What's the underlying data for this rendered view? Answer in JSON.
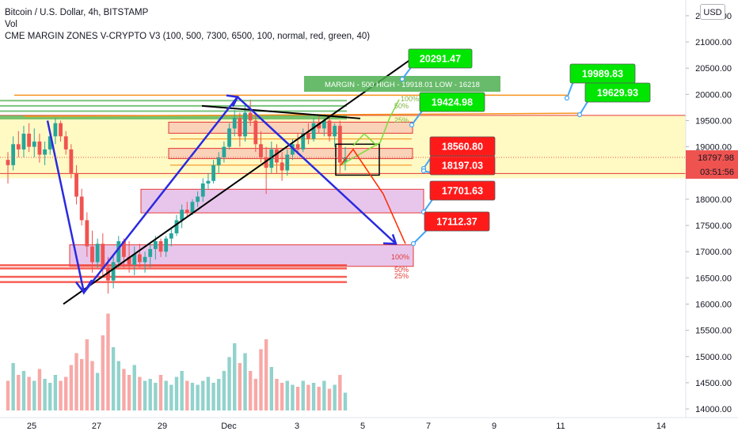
{
  "header": {
    "symbol_line": "Bitcoin / U.S. Dollar, 4h, BITSTAMP",
    "volume_label": "Vol",
    "indicator_line": "CME MARGIN ZONES V-CRYPTO V3 (100, 500, 7300, 6500, 100, normal, red, green, 40)",
    "currency_button": "USD"
  },
  "colors": {
    "up": "#26a69a",
    "down": "#ef5350",
    "blue_drawing": "#2a2ae0",
    "trend_line": "#000000",
    "orange_line": "#f7931a",
    "green_label": "#00e600",
    "red_label": "#ff1a1a",
    "zone_fill_yellow": "#fff9c4",
    "zone_fill_purple": "#e8c6ec"
  },
  "margin_zone_label": "MARGIN - 500  HIGH - 19918.01  LOW - 16218",
  "price_labels": {
    "current_price": "18797.98",
    "countdown": "03:51:56"
  },
  "callouts": [
    {
      "text": "20291.47",
      "color": "green"
    },
    {
      "text": "19989.83",
      "color": "green"
    },
    {
      "text": "19629.93",
      "color": "green"
    },
    {
      "text": "19424.98",
      "color": "green"
    },
    {
      "text": "18560.80",
      "color": "red"
    },
    {
      "text": "18197.03",
      "color": "red"
    },
    {
      "text": "17701.63",
      "color": "red"
    },
    {
      "text": "17112.37",
      "color": "red"
    }
  ],
  "zone_percent_labels": [
    "100%",
    "50%",
    "25%",
    "25%",
    "50%",
    "100%"
  ],
  "chart_data": {
    "type": "candlestick",
    "timeframe": "4h",
    "x_ticks": [
      "25",
      "27",
      "29",
      "Dec",
      "3",
      "5",
      "7",
      "9",
      "11",
      "14"
    ],
    "y_ticks": [
      21500,
      21000,
      20500,
      20000,
      19500,
      19000,
      18500,
      18000,
      17500,
      17000,
      16500,
      16000,
      15500,
      15000,
      14500,
      14000
    ],
    "y_tick_labels": [
      "21500.00",
      "21000.00",
      "20500.00",
      "20000.00",
      "19500.00",
      "19000.00",
      "18500.00",
      "18000.00",
      "17500.00",
      "17000.00",
      "16500.00",
      "16000.00",
      "15500.00",
      "15000.00",
      "14500.00",
      "14000.00"
    ],
    "ylim": [
      13850,
      21800
    ],
    "last_price": 18797.98,
    "candles": [
      {
        "o": 18750,
        "h": 18900,
        "l": 18300,
        "c": 18650
      },
      {
        "o": 18650,
        "h": 19200,
        "l": 18550,
        "c": 19050
      },
      {
        "o": 19050,
        "h": 19300,
        "l": 18800,
        "c": 18950
      },
      {
        "o": 18950,
        "h": 19400,
        "l": 18800,
        "c": 19250
      },
      {
        "o": 19250,
        "h": 19450,
        "l": 18900,
        "c": 19000
      },
      {
        "o": 19000,
        "h": 19350,
        "l": 18800,
        "c": 19100
      },
      {
        "o": 19100,
        "h": 19250,
        "l": 18700,
        "c": 18850
      },
      {
        "o": 18850,
        "h": 19100,
        "l": 18650,
        "c": 18950
      },
      {
        "o": 18950,
        "h": 19300,
        "l": 18850,
        "c": 19200
      },
      {
        "o": 19200,
        "h": 19550,
        "l": 19050,
        "c": 19450
      },
      {
        "o": 19450,
        "h": 19500,
        "l": 19100,
        "c": 19200
      },
      {
        "o": 19200,
        "h": 19300,
        "l": 18850,
        "c": 18950
      },
      {
        "o": 18950,
        "h": 19050,
        "l": 18400,
        "c": 18500
      },
      {
        "o": 18500,
        "h": 18650,
        "l": 17900,
        "c": 18050
      },
      {
        "o": 18050,
        "h": 18200,
        "l": 17500,
        "c": 17600
      },
      {
        "o": 17600,
        "h": 17750,
        "l": 16900,
        "c": 17100
      },
      {
        "o": 17100,
        "h": 17400,
        "l": 16600,
        "c": 16800
      },
      {
        "o": 16800,
        "h": 17250,
        "l": 16700,
        "c": 17150
      },
      {
        "o": 17150,
        "h": 17350,
        "l": 16500,
        "c": 16700
      },
      {
        "o": 16700,
        "h": 16900,
        "l": 16200,
        "c": 16450
      },
      {
        "o": 16450,
        "h": 16950,
        "l": 16300,
        "c": 16800
      },
      {
        "o": 16800,
        "h": 17300,
        "l": 16700,
        "c": 17200
      },
      {
        "o": 17200,
        "h": 17250,
        "l": 16700,
        "c": 16900
      },
      {
        "o": 16900,
        "h": 17200,
        "l": 16600,
        "c": 16750
      },
      {
        "o": 16750,
        "h": 17100,
        "l": 16550,
        "c": 16950
      },
      {
        "o": 16950,
        "h": 17150,
        "l": 16700,
        "c": 16800
      },
      {
        "o": 16800,
        "h": 17000,
        "l": 16600,
        "c": 16900
      },
      {
        "o": 16900,
        "h": 17150,
        "l": 16700,
        "c": 17050
      },
      {
        "o": 17050,
        "h": 17300,
        "l": 16850,
        "c": 17200
      },
      {
        "o": 17200,
        "h": 17250,
        "l": 16900,
        "c": 17000
      },
      {
        "o": 17000,
        "h": 17300,
        "l": 16900,
        "c": 17250
      },
      {
        "o": 17250,
        "h": 17450,
        "l": 17100,
        "c": 17350
      },
      {
        "o": 17350,
        "h": 17700,
        "l": 17300,
        "c": 17600
      },
      {
        "o": 17600,
        "h": 17900,
        "l": 17450,
        "c": 17800
      },
      {
        "o": 17800,
        "h": 17950,
        "l": 17650,
        "c": 17750
      },
      {
        "o": 17750,
        "h": 18000,
        "l": 17700,
        "c": 17950
      },
      {
        "o": 17950,
        "h": 18150,
        "l": 17850,
        "c": 18050
      },
      {
        "o": 18050,
        "h": 18400,
        "l": 17950,
        "c": 18300
      },
      {
        "o": 18300,
        "h": 18500,
        "l": 18200,
        "c": 18350
      },
      {
        "o": 18350,
        "h": 18750,
        "l": 18300,
        "c": 18650
      },
      {
        "o": 18650,
        "h": 18900,
        "l": 18500,
        "c": 18800
      },
      {
        "o": 18800,
        "h": 19100,
        "l": 18700,
        "c": 19000
      },
      {
        "o": 19000,
        "h": 19450,
        "l": 18950,
        "c": 19350
      },
      {
        "o": 19350,
        "h": 19700,
        "l": 19200,
        "c": 19550
      },
      {
        "o": 19550,
        "h": 19650,
        "l": 19000,
        "c": 19200
      },
      {
        "o": 19200,
        "h": 19800,
        "l": 19100,
        "c": 19650
      },
      {
        "o": 19650,
        "h": 19900,
        "l": 19400,
        "c": 19500
      },
      {
        "o": 19500,
        "h": 19600,
        "l": 18900,
        "c": 19050
      },
      {
        "o": 19050,
        "h": 19300,
        "l": 18700,
        "c": 18800
      },
      {
        "o": 18800,
        "h": 19000,
        "l": 18100,
        "c": 18600
      },
      {
        "o": 18600,
        "h": 19100,
        "l": 18500,
        "c": 18950
      },
      {
        "o": 18950,
        "h": 19050,
        "l": 18500,
        "c": 18700
      },
      {
        "o": 18700,
        "h": 18900,
        "l": 18350,
        "c": 18550
      },
      {
        "o": 18550,
        "h": 18950,
        "l": 18450,
        "c": 18850
      },
      {
        "o": 18850,
        "h": 19150,
        "l": 18750,
        "c": 19050
      },
      {
        "o": 19050,
        "h": 19250,
        "l": 18850,
        "c": 18950
      },
      {
        "o": 18950,
        "h": 19350,
        "l": 18900,
        "c": 19250
      },
      {
        "o": 19250,
        "h": 19450,
        "l": 19050,
        "c": 19150
      },
      {
        "o": 19150,
        "h": 19550,
        "l": 19100,
        "c": 19450
      },
      {
        "o": 19450,
        "h": 19600,
        "l": 19250,
        "c": 19350
      },
      {
        "o": 19350,
        "h": 19550,
        "l": 19200,
        "c": 19500
      },
      {
        "o": 19500,
        "h": 19550,
        "l": 19100,
        "c": 19200
      },
      {
        "o": 19200,
        "h": 19450,
        "l": 19000,
        "c": 19400
      },
      {
        "o": 19400,
        "h": 19500,
        "l": 18500,
        "c": 18700
      },
      {
        "o": 18700,
        "h": 19000,
        "l": 18550,
        "c": 18800
      }
    ],
    "volume": [
      1500,
      2400,
      1800,
      2000,
      1700,
      1500,
      2100,
      1600,
      1400,
      1800,
      1500,
      1700,
      2300,
      2900,
      2600,
      3600,
      2500,
      1900,
      3800,
      4900,
      3200,
      2500,
      2100,
      1800,
      2300,
      1700,
      1500,
      1600,
      1400,
      1800,
      1500,
      1300,
      1700,
      2000,
      1500,
      1400,
      1300,
      1500,
      1700,
      1400,
      1600,
      2000,
      2700,
      3400,
      2400,
      2900,
      2000,
      1600,
      3100,
      3600,
      2200,
      1600,
      1400,
      1500,
      1300,
      1200,
      1500,
      1300,
      1400,
      1200,
      1500,
      1100,
      1300,
      1800,
      900
    ]
  }
}
